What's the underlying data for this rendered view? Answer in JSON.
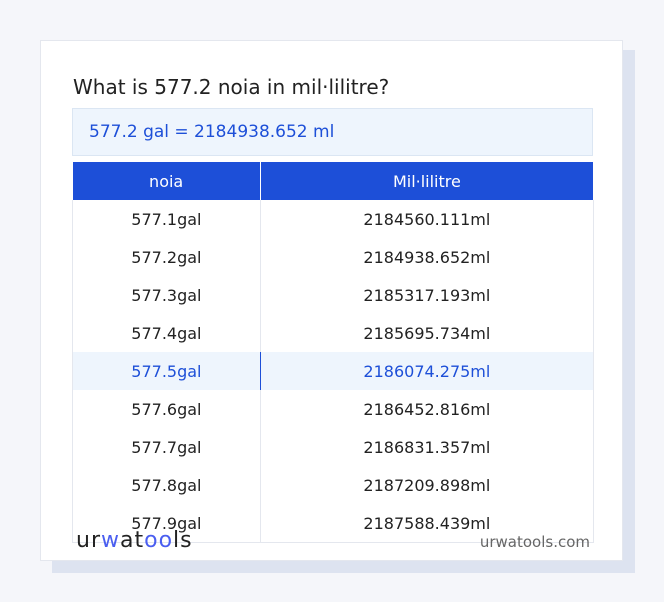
{
  "title": "What is 577.2 noia in mil·lilitre?",
  "result": "577.2 gal = 2184938.652 ml",
  "table": {
    "headers": [
      "noia",
      "Mil·lilitre"
    ],
    "rows": [
      [
        "577.1gal",
        "2184560.111ml"
      ],
      [
        "577.2gal",
        "2184938.652ml"
      ],
      [
        "577.3gal",
        "2185317.193ml"
      ],
      [
        "577.4gal",
        "2185695.734ml"
      ],
      [
        "577.5gal",
        "2186074.275ml"
      ],
      [
        "577.6gal",
        "2186452.816ml"
      ],
      [
        "577.7gal",
        "2186831.357ml"
      ],
      [
        "577.8gal",
        "2187209.898ml"
      ],
      [
        "577.9gal",
        "2187588.439ml"
      ]
    ],
    "highlighted_row": 4
  },
  "footer": {
    "logo": "urwatools",
    "site": "urwatools.com"
  },
  "colors": {
    "accent": "#1d4fd8",
    "highlight_bg": "#eef5fd"
  }
}
